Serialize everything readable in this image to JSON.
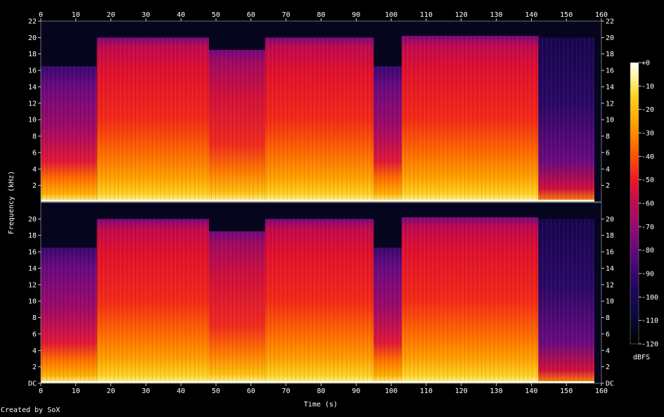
{
  "chart_data": {
    "type": "heatmap",
    "description_free": true,
    "xlabel": "Time (s)",
    "ylabel": "Frequency (kHz)",
    "xlim": [
      0,
      160
    ],
    "ylim": [
      0,
      22
    ],
    "x_ticks": [
      0,
      10,
      20,
      30,
      40,
      50,
      60,
      70,
      80,
      90,
      100,
      110,
      120,
      130,
      140,
      150,
      160
    ],
    "x_tick_labels": [
      "0",
      "10",
      "20",
      "30",
      "40",
      "50",
      "60",
      "70",
      "80",
      "90",
      "100",
      "110",
      "120",
      "130",
      "140",
      "150",
      "160"
    ],
    "channels": [
      {
        "name": "top",
        "y_ticks": [
          2,
          4,
          6,
          8,
          10,
          12,
          14,
          16,
          18,
          20,
          22
        ],
        "y_tick_labels": [
          "2",
          "4",
          "6",
          "8",
          "10",
          "12",
          "14",
          "16",
          "18",
          "20",
          "22"
        ]
      },
      {
        "name": "bottom",
        "y_ticks": [
          0,
          2,
          4,
          6,
          8,
          10,
          12,
          14,
          16,
          18,
          20
        ],
        "y_tick_labels": [
          "DC",
          "2",
          "4",
          "6",
          "8",
          "10",
          "12",
          "14",
          "16",
          "18",
          "20"
        ]
      }
    ],
    "segments": [
      {
        "start": 0,
        "end": 16,
        "cutoff_khz": 16.5,
        "level": "mid"
      },
      {
        "start": 16,
        "end": 48,
        "cutoff_khz": 20,
        "level": "high"
      },
      {
        "start": 48,
        "end": 64,
        "cutoff_khz": 18.5,
        "level": "mid-high"
      },
      {
        "start": 64,
        "end": 95,
        "cutoff_khz": 20,
        "level": "high"
      },
      {
        "start": 95,
        "end": 103,
        "cutoff_khz": 16.5,
        "level": "mid"
      },
      {
        "start": 103,
        "end": 142,
        "cutoff_khz": 20.2,
        "level": "high"
      },
      {
        "start": 142,
        "end": 158,
        "cutoff_khz": 20,
        "level": "fade"
      }
    ],
    "colorbar": {
      "label": "dBFS",
      "range": [
        -120,
        0
      ],
      "ticks": [
        0,
        -10,
        -20,
        -30,
        -40,
        -50,
        -60,
        -70,
        -80,
        -90,
        -100,
        -110,
        -120
      ],
      "tick_labels": [
        "+0",
        "-10",
        "-20",
        "-30",
        "-40",
        "-50",
        "-60",
        "-70",
        "-80",
        "-90",
        "-100",
        "-110",
        "-120"
      ],
      "colors": [
        "#ffffff",
        "#fff5a0",
        "#ffd21e",
        "#ffa000",
        "#ff5a00",
        "#f01428",
        "#c00a50",
        "#8c0a78",
        "#50087c",
        "#22065e",
        "#0a0a3c",
        "#000000"
      ]
    }
  },
  "footer": {
    "credit": "Created by SoX"
  }
}
